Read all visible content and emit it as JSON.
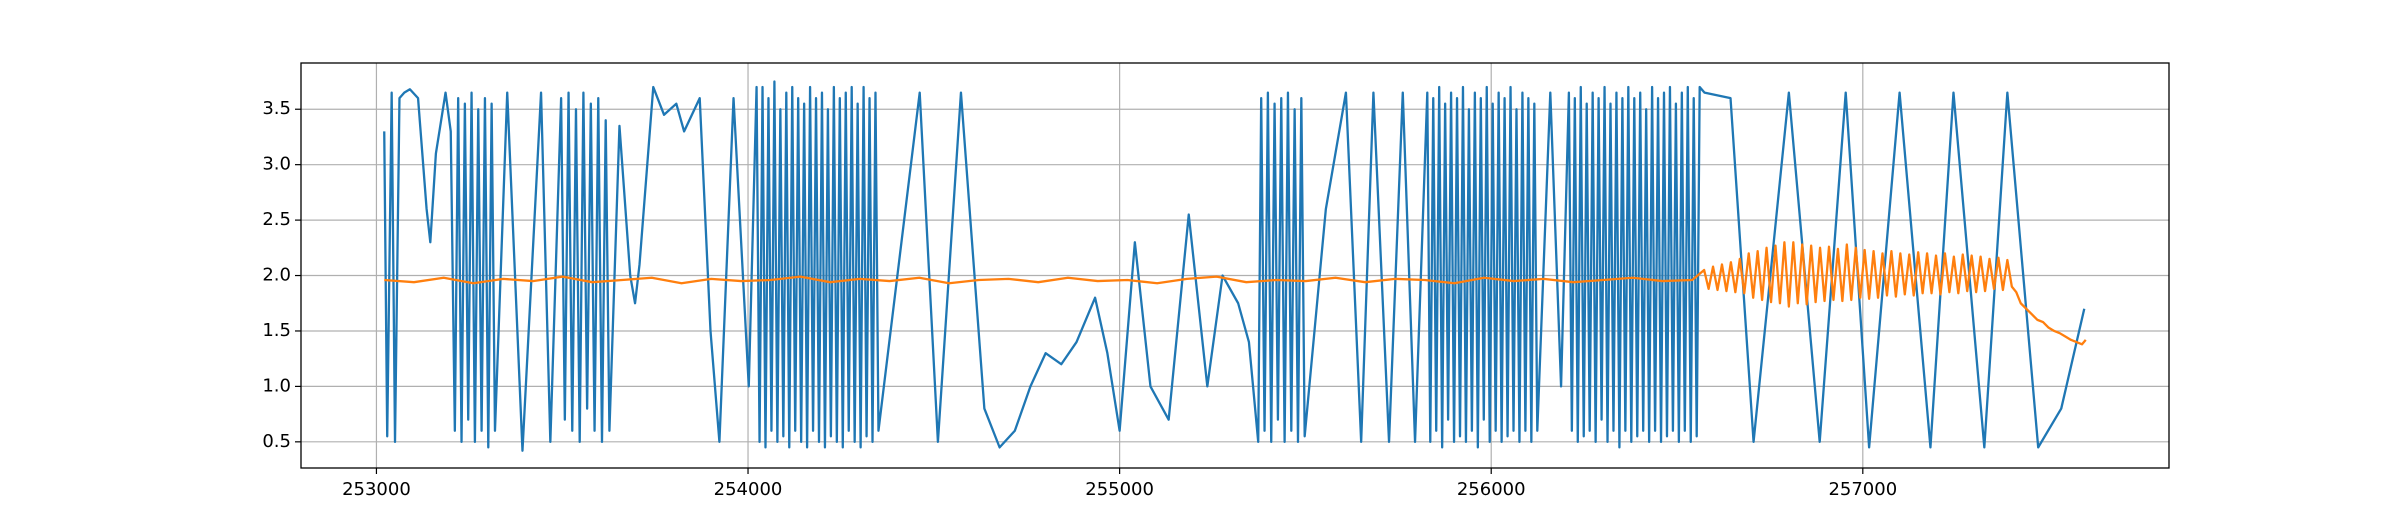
{
  "chart_data": {
    "type": "line",
    "grid": true,
    "xlim": [
      252797,
      257824
    ],
    "ylim": [
      0.264,
      3.917
    ],
    "xticks": [
      253000,
      254000,
      255000,
      256000,
      257000
    ],
    "yticks": [
      0.5,
      {
        "value": 1.0,
        "label": "1.0"
      },
      1.5,
      {
        "value": 2.0,
        "label": "2.0"
      },
      2.5,
      {
        "value": 3.0,
        "label": "3.0"
      },
      3.5
    ],
    "series": [
      {
        "color": "#1f77b4",
        "x": [
          253021,
          253029,
          253041,
          253050,
          253062,
          253075,
          253090,
          253112,
          253135,
          253145,
          253160,
          253186,
          253200,
          253211,
          253220,
          253229,
          253238,
          253247,
          253256,
          253265,
          253274,
          253283,
          253292,
          253301,
          253310,
          253319,
          253352,
          253393,
          253443,
          253468,
          253497,
          253507,
          253517,
          253527,
          253537,
          253547,
          253557,
          253567,
          253577,
          253587,
          253597,
          253607,
          253617,
          253627,
          253654,
          253683,
          253696,
          253708,
          253745,
          253774,
          253807,
          253828,
          253870,
          253899,
          253923,
          253961,
          254002,
          254023,
          254031,
          254039,
          254047,
          254055,
          254063,
          254071,
          254079,
          254087,
          254095,
          254103,
          254111,
          254119,
          254127,
          254135,
          254143,
          254151,
          254159,
          254167,
          254175,
          254183,
          254191,
          254199,
          254207,
          254215,
          254223,
          254231,
          254239,
          254247,
          254255,
          254263,
          254271,
          254279,
          254287,
          254295,
          254303,
          254311,
          254319,
          254327,
          254335,
          254343,
          254351,
          254462,
          254511,
          254573,
          254636,
          254677,
          254718,
          254760,
          254801,
          254843,
          254884,
          254934,
          254967,
          255000,
          255041,
          255083,
          255132,
          255186,
          255236,
          255277,
          255319,
          255348,
          255373,
          255381,
          255390,
          255399,
          255408,
          255417,
          255426,
          255435,
          255444,
          255453,
          255462,
          255471,
          255480,
          255489,
          255498,
          255555,
          255609,
          255650,
          255683,
          255725,
          255762,
          255795,
          255828,
          255836,
          255844,
          255852,
          255860,
          255868,
          255876,
          255884,
          255892,
          255900,
          255908,
          255916,
          255924,
          255932,
          255940,
          255948,
          255956,
          255964,
          255972,
          255980,
          255988,
          255996,
          256004,
          256012,
          256020,
          256028,
          256036,
          256044,
          256052,
          256060,
          256068,
          256076,
          256084,
          256092,
          256100,
          256108,
          256116,
          256124,
          256159,
          256188,
          256209,
          256217,
          256225,
          256233,
          256241,
          256249,
          256257,
          256265,
          256273,
          256281,
          256289,
          256297,
          256305,
          256313,
          256321,
          256329,
          256337,
          256345,
          256353,
          256361,
          256369,
          256377,
          256385,
          256393,
          256401,
          256409,
          256417,
          256425,
          256433,
          256441,
          256449,
          256457,
          256465,
          256473,
          256481,
          256489,
          256497,
          256505,
          256513,
          256521,
          256529,
          256537,
          256545,
          256553,
          256561,
          256574,
          256644,
          256706,
          256801,
          256884,
          256954,
          257017,
          257099,
          257182,
          257244,
          257327,
          257389,
          257472,
          257534,
          257596
        ],
        "values": [
          3.3,
          0.55,
          3.65,
          0.5,
          3.6,
          3.65,
          3.68,
          3.6,
          2.6,
          2.3,
          3.1,
          3.65,
          3.3,
          0.6,
          3.6,
          0.5,
          3.55,
          0.7,
          3.65,
          0.5,
          3.5,
          0.6,
          3.6,
          0.45,
          3.55,
          0.6,
          3.65,
          0.42,
          3.65,
          0.5,
          3.6,
          0.7,
          3.65,
          0.6,
          3.5,
          0.5,
          3.65,
          0.8,
          3.55,
          0.6,
          3.6,
          0.5,
          3.4,
          0.6,
          3.35,
          2.0,
          1.75,
          2.1,
          3.7,
          3.45,
          3.55,
          3.3,
          3.6,
          1.5,
          0.5,
          3.6,
          1.0,
          3.7,
          0.5,
          3.7,
          0.45,
          3.6,
          0.6,
          3.75,
          0.5,
          3.5,
          0.55,
          3.65,
          0.45,
          3.7,
          0.6,
          3.6,
          0.5,
          3.55,
          0.45,
          3.7,
          0.6,
          3.6,
          0.5,
          3.65,
          0.45,
          3.5,
          0.55,
          3.7,
          0.5,
          3.6,
          0.45,
          3.65,
          0.6,
          3.7,
          0.5,
          3.55,
          0.45,
          3.7,
          0.55,
          3.6,
          0.5,
          3.65,
          0.6,
          3.65,
          0.5,
          3.65,
          0.8,
          0.45,
          0.6,
          1.0,
          1.3,
          1.2,
          1.4,
          1.8,
          1.3,
          0.6,
          2.3,
          1.0,
          0.7,
          2.55,
          1.0,
          2.0,
          1.75,
          1.4,
          0.5,
          3.6,
          0.6,
          3.65,
          0.5,
          3.55,
          0.7,
          3.6,
          0.5,
          3.65,
          0.6,
          3.5,
          0.5,
          3.6,
          0.55,
          2.6,
          3.65,
          0.5,
          3.65,
          0.5,
          3.65,
          0.5,
          3.65,
          0.5,
          3.6,
          0.6,
          3.7,
          0.45,
          3.55,
          0.7,
          3.65,
          0.5,
          3.6,
          0.55,
          3.7,
          0.5,
          3.5,
          0.6,
          3.65,
          0.45,
          3.6,
          0.7,
          3.7,
          0.5,
          3.55,
          0.6,
          3.65,
          0.5,
          3.6,
          0.55,
          3.7,
          0.6,
          3.5,
          0.5,
          3.65,
          0.6,
          3.6,
          0.5,
          3.55,
          0.6,
          3.65,
          1.0,
          3.65,
          0.6,
          3.6,
          0.5,
          3.7,
          0.55,
          3.55,
          0.6,
          3.65,
          0.5,
          3.6,
          0.7,
          3.7,
          0.5,
          3.55,
          0.6,
          3.65,
          0.45,
          3.6,
          0.6,
          3.7,
          0.5,
          3.6,
          0.55,
          3.65,
          0.6,
          3.5,
          0.5,
          3.7,
          0.6,
          3.6,
          0.5,
          3.65,
          0.55,
          3.7,
          0.6,
          3.55,
          0.5,
          3.65,
          0.6,
          3.7,
          0.5,
          3.6,
          0.55,
          3.7,
          3.65,
          3.6,
          0.5,
          3.65,
          0.5,
          3.65,
          0.45,
          3.65,
          0.45,
          3.65,
          0.45,
          3.65,
          0.45,
          0.8,
          1.7
        ]
      },
      {
        "color": "#ff7f0e",
        "x": [
          253021,
          253101,
          253181,
          253261,
          253341,
          253421,
          253501,
          253581,
          253661,
          253741,
          253821,
          253901,
          253981,
          254061,
          254141,
          254221,
          254301,
          254381,
          254461,
          254541,
          254621,
          254701,
          254781,
          254861,
          254941,
          255021,
          255101,
          255181,
          255261,
          255341,
          255421,
          255501,
          255581,
          255661,
          255741,
          255821,
          255901,
          255981,
          256061,
          256141,
          256221,
          256301,
          256381,
          256461,
          256541,
          256573,
          256585,
          256597,
          256609,
          256621,
          256633,
          256645,
          256657,
          256669,
          256681,
          256693,
          256705,
          256717,
          256729,
          256741,
          256753,
          256765,
          256777,
          256789,
          256801,
          256813,
          256825,
          256837,
          256849,
          256861,
          256873,
          256885,
          256897,
          256909,
          256921,
          256933,
          256945,
          256957,
          256969,
          256981,
          256993,
          257005,
          257017,
          257029,
          257041,
          257053,
          257065,
          257077,
          257089,
          257101,
          257113,
          257125,
          257137,
          257149,
          257161,
          257173,
          257185,
          257197,
          257209,
          257221,
          257233,
          257245,
          257257,
          257269,
          257281,
          257293,
          257305,
          257317,
          257329,
          257341,
          257353,
          257365,
          257377,
          257389,
          257401,
          257413,
          257425,
          257440,
          257455,
          257470,
          257485,
          257500,
          257515,
          257530,
          257545,
          257560,
          257575,
          257590,
          257600
        ],
        "values": [
          1.96,
          1.94,
          1.98,
          1.93,
          1.97,
          1.95,
          1.99,
          1.94,
          1.96,
          1.98,
          1.93,
          1.97,
          1.95,
          1.96,
          1.99,
          1.94,
          1.97,
          1.95,
          1.98,
          1.93,
          1.96,
          1.97,
          1.94,
          1.98,
          1.95,
          1.96,
          1.93,
          1.97,
          1.99,
          1.94,
          1.96,
          1.95,
          1.98,
          1.94,
          1.97,
          1.96,
          1.93,
          1.98,
          1.95,
          1.97,
          1.94,
          1.96,
          1.98,
          1.95,
          1.96,
          2.05,
          1.88,
          2.08,
          1.87,
          2.1,
          1.86,
          2.12,
          1.85,
          2.15,
          1.84,
          2.2,
          1.8,
          2.22,
          1.78,
          2.25,
          1.76,
          2.27,
          1.75,
          2.3,
          1.72,
          2.3,
          1.75,
          2.28,
          1.74,
          2.27,
          1.76,
          2.25,
          1.77,
          2.26,
          1.78,
          2.24,
          1.77,
          2.28,
          1.78,
          2.25,
          1.8,
          2.23,
          1.79,
          2.22,
          1.8,
          2.2,
          1.82,
          2.22,
          1.81,
          2.2,
          1.83,
          2.19,
          1.82,
          2.21,
          1.84,
          2.2,
          1.84,
          2.18,
          1.83,
          2.2,
          1.85,
          2.17,
          1.84,
          2.19,
          1.86,
          2.18,
          1.85,
          2.17,
          1.86,
          2.15,
          1.88,
          2.16,
          1.87,
          2.14,
          1.9,
          1.85,
          1.75,
          1.7,
          1.65,
          1.6,
          1.58,
          1.53,
          1.5,
          1.48,
          1.45,
          1.42,
          1.4,
          1.38,
          1.42
        ]
      }
    ]
  }
}
